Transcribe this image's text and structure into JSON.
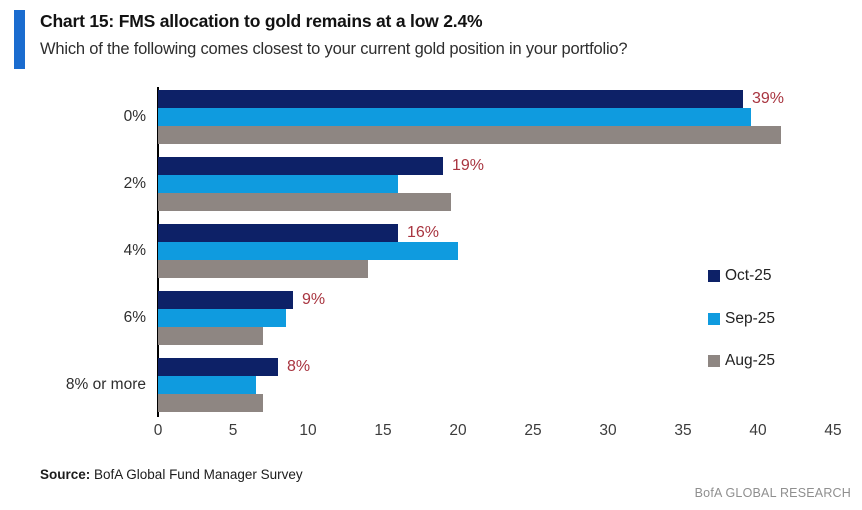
{
  "header": {
    "title": "Chart 15: FMS allocation to gold remains at a low 2.4%",
    "subtitle": "Which of the following comes closest to your current gold position in your portfolio?",
    "accent_color": "#1a6ccf"
  },
  "chart_data": {
    "type": "bar",
    "orientation": "horizontal",
    "categories": [
      "0%",
      "2%",
      "4%",
      "6%",
      "8% or more"
    ],
    "series": [
      {
        "name": "Oct-25",
        "color": "#0d2167",
        "values": [
          39,
          19,
          16,
          9,
          8
        ]
      },
      {
        "name": "Sep-25",
        "color": "#0f9bdf",
        "values": [
          39.5,
          16,
          20,
          8.5,
          6.5
        ]
      },
      {
        "name": "Aug-25",
        "color": "#8e8682",
        "values": [
          41.5,
          19.5,
          14,
          7,
          7
        ]
      }
    ],
    "data_labels": {
      "on_series": "Oct-25",
      "labels": [
        "39%",
        "19%",
        "16%",
        "9%",
        "8%"
      ],
      "color": "#a8343f"
    },
    "x_ticks": [
      "0",
      "5",
      "10",
      "15",
      "20",
      "25",
      "30",
      "35",
      "40",
      "45"
    ],
    "xlim": [
      0,
      45
    ],
    "grid": false,
    "legend_position": "right"
  },
  "footer": {
    "source_label": "Source:",
    "source_text": " BofA Global Fund Manager Survey",
    "brand": "BofA GLOBAL RESEARCH"
  }
}
